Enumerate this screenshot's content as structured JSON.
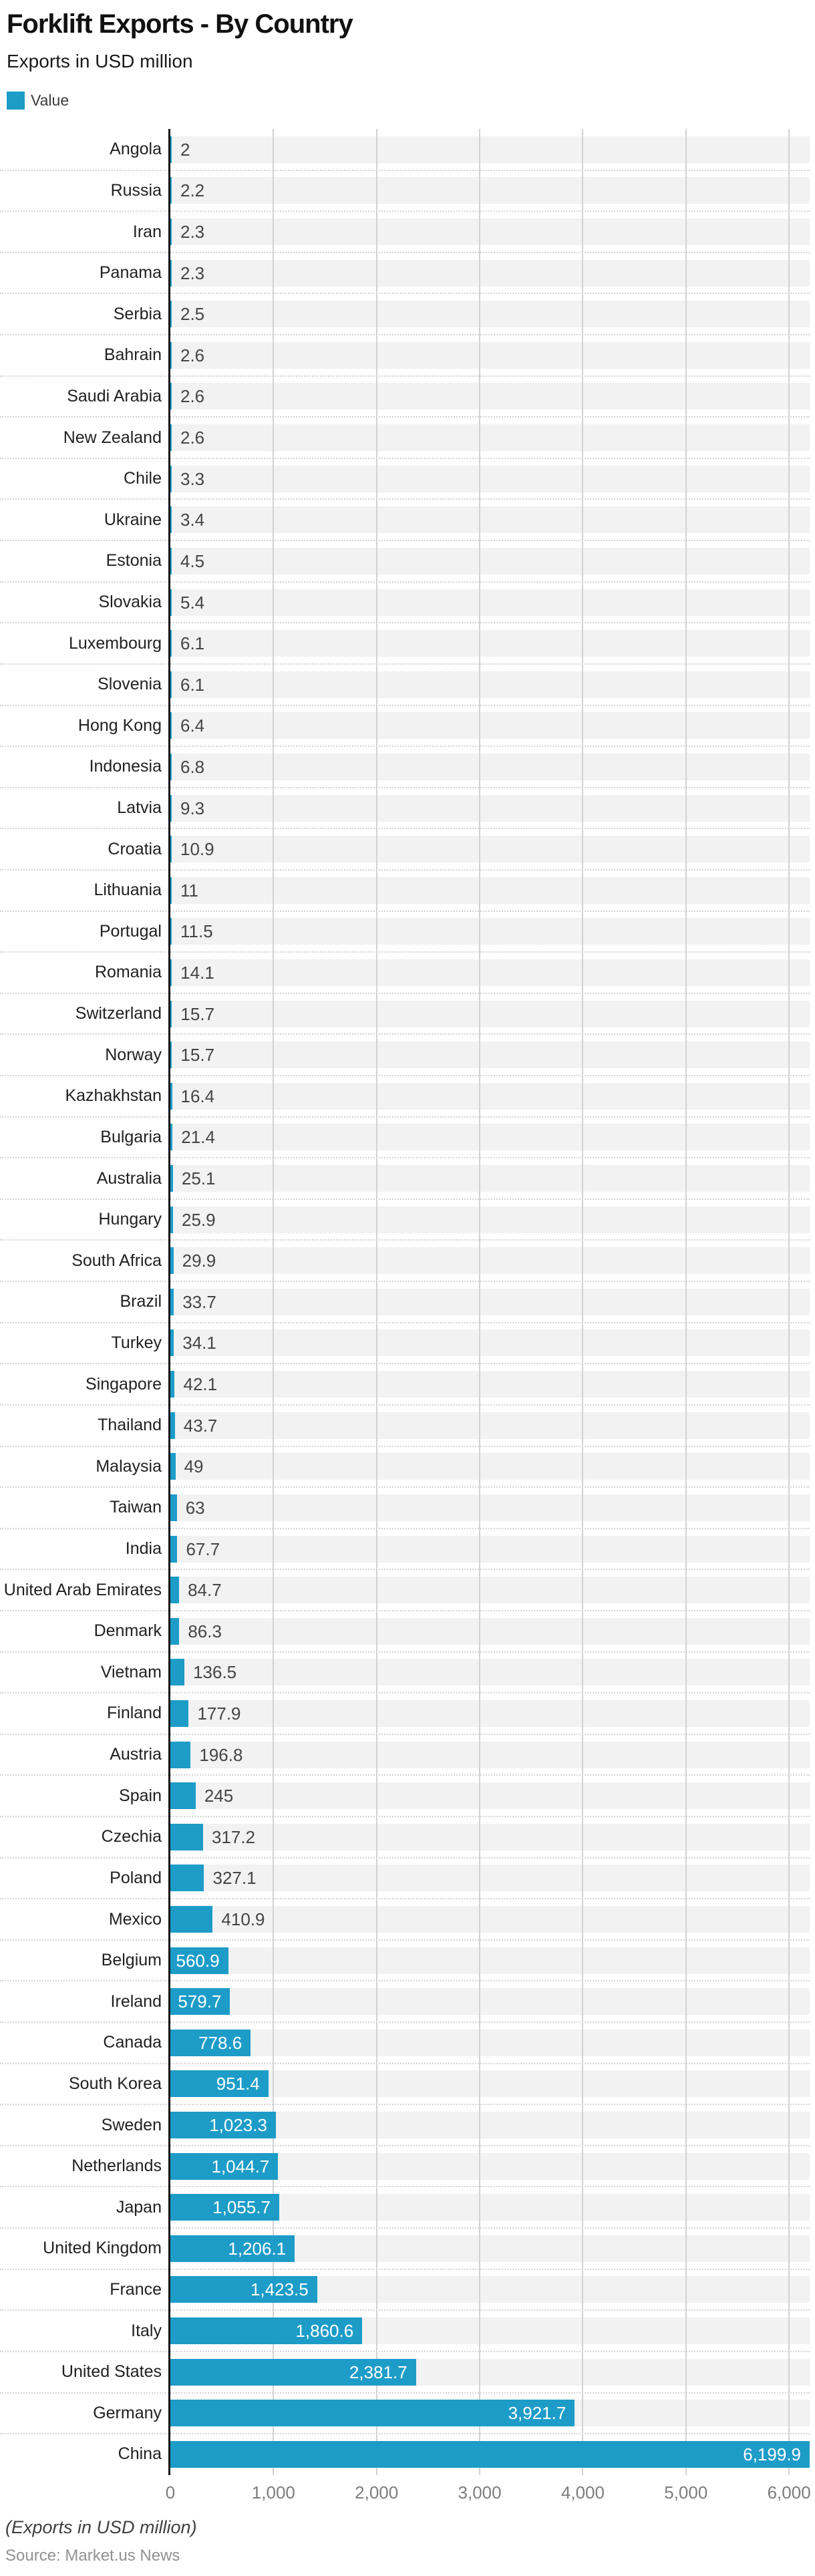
{
  "header": {
    "title": "Forklift Exports - By Country",
    "subtitle": "Exports in USD million"
  },
  "legend": {
    "items": [
      {
        "label": "Value",
        "color": "#1D9CC8"
      }
    ]
  },
  "footer": {
    "note": "(Exports in USD million)",
    "source": "Source: Market.us News"
  },
  "colors": {
    "bar": "#1D9CC8",
    "row_band": "#f2f2f2",
    "gridline": "#d2d2d2",
    "separator_dots": "#d5d5d5",
    "axis_line": "#161616",
    "inside_value_text": "#ffffff",
    "outside_value_text": "#454545",
    "tick_text": "#7d7d7d"
  },
  "chart_data": {
    "type": "bar",
    "orientation": "horizontal",
    "title": "Forklift Exports - By Country",
    "subtitle": "Exports in USD million",
    "legend": [
      "Value"
    ],
    "legend_position": "top-left",
    "series_name": "Value",
    "grid": "vertical-only",
    "xlim": [
      0,
      6199.9
    ],
    "inside_label_min_value": 500,
    "bar_color": "#1D9CC8",
    "x_ticks": [
      {
        "value": 0,
        "label": "0"
      },
      {
        "value": 1000,
        "label": "1,000"
      },
      {
        "value": 2000,
        "label": "2,000"
      },
      {
        "value": 3000,
        "label": "3,000"
      },
      {
        "value": 4000,
        "label": "4,000"
      },
      {
        "value": 5000,
        "label": "5,000"
      },
      {
        "value": 6000,
        "label": "6,000"
      }
    ],
    "categories": [
      "Angola",
      "Russia",
      "Iran",
      "Panama",
      "Serbia",
      "Bahrain",
      "Saudi Arabia",
      "New Zealand",
      "Chile",
      "Ukraine",
      "Estonia",
      "Slovakia",
      "Luxembourg",
      "Slovenia",
      "Hong Kong",
      "Indonesia",
      "Latvia",
      "Croatia",
      "Lithuania",
      "Portugal",
      "Romania",
      "Switzerland",
      "Norway",
      "Kazhakhstan",
      "Bulgaria",
      "Australia",
      "Hungary",
      "South Africa",
      "Brazil",
      "Turkey",
      "Singapore",
      "Thailand",
      "Malaysia",
      "Taiwan",
      "India",
      "United Arab Emirates",
      "Denmark",
      "Vietnam",
      "Finland",
      "Austria",
      "Spain",
      "Czechia",
      "Poland",
      "Mexico",
      "Belgium",
      "Ireland",
      "Canada",
      "South Korea",
      "Sweden",
      "Netherlands",
      "Japan",
      "United Kingdom",
      "France",
      "Italy",
      "United States",
      "Germany",
      "China"
    ],
    "values": [
      2,
      2.2,
      2.3,
      2.3,
      2.5,
      2.6,
      2.6,
      2.6,
      3.3,
      3.4,
      4.5,
      5.4,
      6.1,
      6.1,
      6.4,
      6.8,
      9.3,
      10.9,
      11,
      11.5,
      14.1,
      15.7,
      15.7,
      16.4,
      21.4,
      25.1,
      25.9,
      29.9,
      33.7,
      34.1,
      42.1,
      43.7,
      49,
      63,
      67.7,
      84.7,
      86.3,
      136.5,
      177.9,
      196.8,
      245,
      317.2,
      327.1,
      410.9,
      560.9,
      579.7,
      778.6,
      951.4,
      1023.3,
      1044.7,
      1055.7,
      1206.1,
      1423.5,
      1860.6,
      2381.7,
      3921.7,
      6199.9
    ],
    "value_labels": [
      "2",
      "2.2",
      "2.3",
      "2.3",
      "2.5",
      "2.6",
      "2.6",
      "2.6",
      "3.3",
      "3.4",
      "4.5",
      "5.4",
      "6.1",
      "6.1",
      "6.4",
      "6.8",
      "9.3",
      "10.9",
      "11",
      "11.5",
      "14.1",
      "15.7",
      "15.7",
      "16.4",
      "21.4",
      "25.1",
      "25.9",
      "29.9",
      "33.7",
      "34.1",
      "42.1",
      "43.7",
      "49",
      "63",
      "67.7",
      "84.7",
      "86.3",
      "136.5",
      "177.9",
      "196.8",
      "245",
      "317.2",
      "327.1",
      "410.9",
      "560.9",
      "579.7",
      "778.6",
      "951.4",
      "1,023.3",
      "1,044.7",
      "1,055.7",
      "1,206.1",
      "1,423.5",
      "1,860.6",
      "2,381.7",
      "3,921.7",
      "6,199.9"
    ]
  }
}
